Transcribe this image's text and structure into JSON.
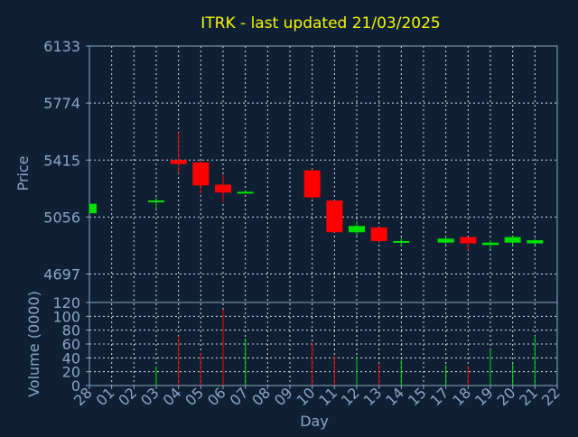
{
  "chart_data": {
    "type": "candlestick",
    "title": "ITRK - last updated 21/03/2025",
    "xlabel": "Day",
    "ylabel": "Price",
    "volume_label": "Volume (0000)",
    "x_ticks": [
      "28",
      "01",
      "02",
      "03",
      "04",
      "05",
      "06",
      "07",
      "08",
      "09",
      "10",
      "11",
      "12",
      "13",
      "14",
      "15",
      "17",
      "18",
      "19",
      "20",
      "21",
      "22"
    ],
    "price_ylim": [
      4518,
      6133
    ],
    "price_ticks": [
      6133,
      5774,
      5415,
      5056,
      4697
    ],
    "volume_ylim": [
      0,
      120
    ],
    "volume_ticks": [
      120,
      100,
      80,
      60,
      40,
      20,
      0
    ],
    "grid": true,
    "colors": {
      "up": "#00e000",
      "down": "#ff0000",
      "background": "#0f2034",
      "title": "#f5f500",
      "axis_text": "#8aa6c6"
    },
    "candles": [
      {
        "day": "28",
        "open": 5080,
        "close": 5140,
        "high": 5140,
        "low": 5080,
        "volume": 0
      },
      {
        "day": "03",
        "open": 5150,
        "close": 5160,
        "high": 5180,
        "low": 5110,
        "volume": 27
      },
      {
        "day": "04",
        "open": 5415,
        "close": 5390,
        "high": 5590,
        "low": 5330,
        "volume": 72
      },
      {
        "day": "05",
        "open": 5400,
        "close": 5255,
        "high": 5410,
        "low": 5200,
        "volume": 47
      },
      {
        "day": "06",
        "open": 5260,
        "close": 5210,
        "high": 5320,
        "low": 5150,
        "volume": 110
      },
      {
        "day": "07",
        "open": 5210,
        "close": 5215,
        "high": 5225,
        "low": 5205,
        "volume": 68
      },
      {
        "day": "10",
        "open": 5350,
        "close": 5180,
        "high": 5360,
        "low": 5170,
        "volume": 62
      },
      {
        "day": "11",
        "open": 5160,
        "close": 4960,
        "high": 5160,
        "low": 4960,
        "volume": 42
      },
      {
        "day": "12",
        "open": 4960,
        "close": 5000,
        "high": 5030,
        "low": 4940,
        "volume": 42
      },
      {
        "day": "13",
        "open": 4990,
        "close": 4905,
        "high": 4990,
        "low": 4890,
        "volume": 32
      },
      {
        "day": "14",
        "open": 4895,
        "close": 4905,
        "high": 4925,
        "low": 4870,
        "volume": 37
      },
      {
        "day": "17",
        "open": 4895,
        "close": 4920,
        "high": 4935,
        "low": 4885,
        "volume": 30
      },
      {
        "day": "18",
        "open": 4930,
        "close": 4890,
        "high": 4930,
        "low": 4845,
        "volume": 28
      },
      {
        "day": "19",
        "open": 4880,
        "close": 4895,
        "high": 4910,
        "low": 4855,
        "volume": 52
      },
      {
        "day": "20",
        "open": 4895,
        "close": 4930,
        "high": 4940,
        "low": 4875,
        "volume": 32
      },
      {
        "day": "21",
        "open": 4890,
        "close": 4910,
        "high": 4920,
        "low": 4880,
        "volume": 72
      }
    ]
  }
}
